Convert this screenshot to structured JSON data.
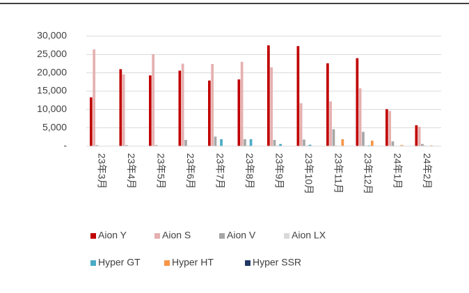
{
  "chart_data": {
    "type": "bar",
    "categories": [
      "23年3月",
      "23年4月",
      "23年5月",
      "23年6月",
      "23年7月",
      "23年8月",
      "23年9月",
      "23年10月",
      "23年11月",
      "23年12月",
      "24年1月",
      "24年2月"
    ],
    "series": [
      {
        "name": "Aion Y",
        "color": "#c00000",
        "values": [
          13300,
          21000,
          19300,
          20600,
          17900,
          18200,
          27500,
          27300,
          22600,
          24000,
          10100,
          5700
        ]
      },
      {
        "name": "Aion S",
        "color": "#e6b0b0",
        "values": [
          26400,
          19600,
          25100,
          22500,
          22400,
          23000,
          21500,
          11700,
          12200,
          15800,
          9600,
          5300
        ]
      },
      {
        "name": "Aion V",
        "color": "#a6a6a6",
        "values": [
          300,
          300,
          300,
          1700,
          2600,
          1900,
          1700,
          1800,
          4600,
          3900,
          1300,
          600
        ]
      },
      {
        "name": "Aion LX",
        "color": "#d9d9d9",
        "values": [
          100,
          100,
          100,
          100,
          100,
          200,
          200,
          200,
          200,
          200,
          100,
          200
        ]
      },
      {
        "name": "Hyper GT",
        "color": "#4bacc6",
        "values": [
          0,
          0,
          0,
          0,
          1900,
          1900,
          600,
          400,
          0,
          200,
          0,
          0
        ]
      },
      {
        "name": "Hyper HT",
        "color": "#f79646",
        "values": [
          0,
          0,
          0,
          0,
          0,
          0,
          0,
          0,
          1900,
          1500,
          300,
          200
        ]
      },
      {
        "name": "Hyper SSR",
        "color": "#1f3864",
        "values": [
          0,
          0,
          0,
          0,
          0,
          0,
          0,
          0,
          0,
          0,
          0,
          0
        ]
      }
    ],
    "ylim": [
      0,
      30000
    ],
    "yticks": [
      {
        "value": 0,
        "label": "-"
      },
      {
        "value": 5000,
        "label": "5,000"
      },
      {
        "value": 10000,
        "label": "10,000"
      },
      {
        "value": 15000,
        "label": "15,000"
      },
      {
        "value": 20000,
        "label": "20,000"
      },
      {
        "value": 25000,
        "label": "25,000"
      },
      {
        "value": 30000,
        "label": "30,000"
      }
    ],
    "grid": true,
    "legend": "bottom"
  }
}
